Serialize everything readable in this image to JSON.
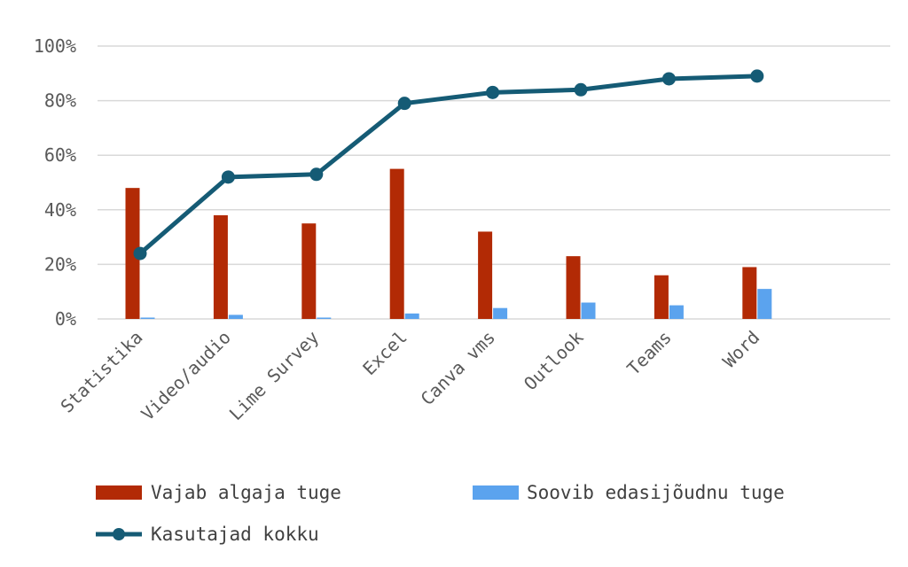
{
  "chart_data": {
    "type": "bar+line",
    "categories": [
      "Statistika",
      "Video/audio",
      "Lime Survey",
      "Excel",
      "Canva vms",
      "Outlook",
      "Teams",
      "Word"
    ],
    "series": [
      {
        "name": "Vajab algaja tuge",
        "type": "bar",
        "color": "#b22a05",
        "values": [
          48,
          38,
          35,
          55,
          32,
          23,
          16,
          19
        ]
      },
      {
        "name": "Soovib edasijõudnu tuge",
        "type": "bar",
        "color": "#5ba3ee",
        "values": [
          0.5,
          1.5,
          0.5,
          2,
          4,
          6,
          5,
          11
        ]
      },
      {
        "name": "Kasutajad kokku",
        "type": "line",
        "color": "#155b75",
        "values": [
          24,
          52,
          53,
          79,
          83,
          84,
          88,
          89
        ]
      }
    ],
    "y_ticks": [
      "0%",
      "20%",
      "40%",
      "60%",
      "80%",
      "100%"
    ],
    "ylim": [
      0,
      100
    ],
    "grid": true,
    "legend_position": "bottom"
  }
}
